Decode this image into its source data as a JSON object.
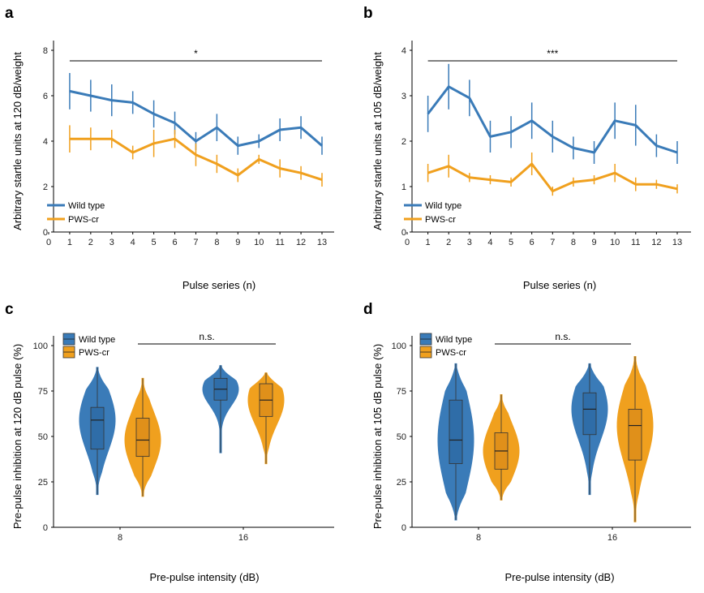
{
  "panels": {
    "a": "a",
    "b": "b",
    "c": "c",
    "d": "d"
  },
  "colors": {
    "wild_type": "#3a7bb8",
    "pws_cr": "#f0a01e"
  },
  "chart_data": [
    {
      "panel": "a",
      "type": "line",
      "ylabel": "Arbitrary startle units at 120 dB/weight",
      "xlabel": "Pulse series (n)",
      "xlim": [
        0,
        13
      ],
      "ylim": [
        0,
        8
      ],
      "x_ticks": [
        0,
        1,
        2,
        3,
        4,
        5,
        6,
        7,
        8,
        9,
        10,
        11,
        12,
        13
      ],
      "y_ticks": [
        0,
        2,
        4,
        6,
        8
      ],
      "significance": "*",
      "legend_position": "bottom-left",
      "x": [
        1,
        2,
        3,
        4,
        5,
        6,
        7,
        8,
        9,
        10,
        11,
        12,
        13
      ],
      "series": [
        {
          "name": "Wild type",
          "values": [
            6.2,
            6.0,
            5.8,
            5.7,
            5.2,
            4.8,
            4.0,
            4.6,
            3.8,
            4.0,
            4.5,
            4.6,
            3.8
          ],
          "error": [
            0.8,
            0.7,
            0.7,
            0.5,
            0.6,
            0.5,
            0.4,
            0.6,
            0.4,
            0.3,
            0.5,
            0.5,
            0.4
          ]
        },
        {
          "name": "PWS-cr",
          "values": [
            4.1,
            4.1,
            4.1,
            3.5,
            3.9,
            4.1,
            3.4,
            3.0,
            2.5,
            3.2,
            2.8,
            2.6,
            2.3
          ],
          "error": [
            0.6,
            0.5,
            0.4,
            0.3,
            0.6,
            0.4,
            0.5,
            0.4,
            0.3,
            0.2,
            0.4,
            0.3,
            0.3
          ]
        }
      ]
    },
    {
      "panel": "b",
      "type": "line",
      "ylabel": "Arbitrary startle units at 105 dB/weight",
      "xlabel": "Pulse series (n)",
      "xlim": [
        0,
        13
      ],
      "ylim": [
        0,
        4
      ],
      "x_ticks": [
        0,
        1,
        2,
        3,
        4,
        5,
        6,
        7,
        8,
        9,
        10,
        11,
        12,
        13
      ],
      "y_ticks": [
        0,
        1,
        2,
        3,
        4
      ],
      "significance": "***",
      "legend_position": "bottom-left",
      "x": [
        1,
        2,
        3,
        4,
        5,
        6,
        7,
        8,
        9,
        10,
        11,
        12,
        13
      ],
      "series": [
        {
          "name": "Wild type",
          "values": [
            2.6,
            3.2,
            2.95,
            2.1,
            2.2,
            2.45,
            2.1,
            1.85,
            1.75,
            2.45,
            2.35,
            1.9,
            1.75
          ],
          "error": [
            0.4,
            0.5,
            0.4,
            0.35,
            0.35,
            0.4,
            0.35,
            0.25,
            0.25,
            0.4,
            0.45,
            0.25,
            0.25
          ]
        },
        {
          "name": "PWS-cr",
          "values": [
            1.3,
            1.45,
            1.2,
            1.15,
            1.1,
            1.5,
            0.9,
            1.1,
            1.15,
            1.3,
            1.05,
            1.05,
            0.95
          ],
          "error": [
            0.2,
            0.25,
            0.1,
            0.1,
            0.1,
            0.25,
            0.1,
            0.1,
            0.1,
            0.2,
            0.15,
            0.1,
            0.1
          ]
        }
      ]
    },
    {
      "panel": "c",
      "type": "violin",
      "ylabel": "Pre-pulse inhibition at 120 dB pulse (%)",
      "xlabel": "Pre-pulse intensity (dB)",
      "categories": [
        "8",
        "16"
      ],
      "ylim": [
        0,
        100
      ],
      "y_ticks": [
        0,
        25,
        50,
        75,
        100
      ],
      "significance": "n.s.",
      "legend_position": "top-left",
      "series": [
        {
          "name": "Wild type",
          "groups": [
            {
              "min": 18,
              "q1": 43,
              "median": 59,
              "q3": 66,
              "max": 88
            },
            {
              "min": 41,
              "q1": 70,
              "median": 76,
              "q3": 82,
              "max": 89
            }
          ]
        },
        {
          "name": "PWS-cr",
          "groups": [
            {
              "min": 17,
              "q1": 39,
              "median": 48,
              "q3": 60,
              "max": 82
            },
            {
              "min": 35,
              "q1": 61,
              "median": 70,
              "q3": 79,
              "max": 85
            }
          ]
        }
      ]
    },
    {
      "panel": "d",
      "type": "violin",
      "ylabel": "Pre-pulse inhibition at 105 dB pulse (%)",
      "xlabel": "Pre-pulse intensity (dB)",
      "categories": [
        "8",
        "16"
      ],
      "ylim": [
        0,
        100
      ],
      "y_ticks": [
        0,
        25,
        50,
        75,
        100
      ],
      "significance": "n.s.",
      "legend_position": "top-left",
      "series": [
        {
          "name": "Wild type",
          "groups": [
            {
              "min": 4,
              "q1": 35,
              "median": 48,
              "q3": 70,
              "max": 90
            },
            {
              "min": 18,
              "q1": 51,
              "median": 65,
              "q3": 74,
              "max": 90
            }
          ]
        },
        {
          "name": "PWS-cr",
          "groups": [
            {
              "min": 15,
              "q1": 32,
              "median": 42,
              "q3": 52,
              "max": 73
            },
            {
              "min": 3,
              "q1": 37,
              "median": 56,
              "q3": 65,
              "max": 94
            }
          ]
        }
      ]
    }
  ]
}
